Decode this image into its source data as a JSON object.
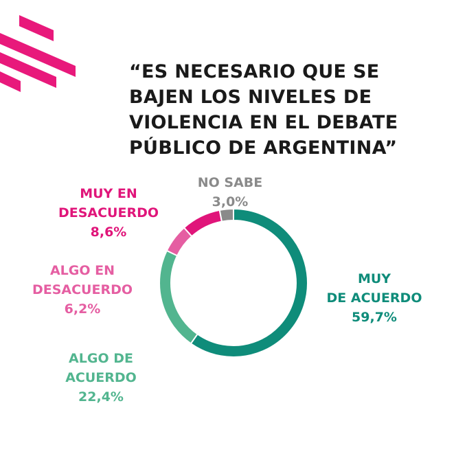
{
  "title_lines": [
    "“ES NECESARIO QUE SE",
    "BAJEN LOS NIVELES DE",
    "VIOLENCIA EN EL DEBATE",
    "PÚBLICO DE ARGENTINA”"
  ],
  "logo": {
    "icon": "brand-stripes-icon",
    "color": "#e8197b"
  },
  "chart_data": {
    "type": "pie",
    "style": "donut",
    "title": "“ES NECESARIO QUE SE BAJEN LOS NIVELES DE VIOLENCIA EN EL DEBATE PÚBLICO DE ARGENTINA”",
    "legend": "none",
    "slices": [
      {
        "label_lines": [
          "MUY",
          "DE ACUERDO"
        ],
        "value": 59.7,
        "value_label": "59,7%",
        "color": "#0f8c7a",
        "label_color": "#0f8c7a"
      },
      {
        "label_lines": [
          "ALGO DE",
          "ACUERDO"
        ],
        "value": 22.4,
        "value_label": "22,4%",
        "color": "#52b58f",
        "label_color": "#52b58f"
      },
      {
        "label_lines": [
          "ALGO EN",
          "DESACUERDO"
        ],
        "value": 6.2,
        "value_label": "6,2%",
        "color": "#e55ea2",
        "label_color": "#e55ea2"
      },
      {
        "label_lines": [
          "MUY EN",
          "DESACUERDO"
        ],
        "value": 8.6,
        "value_label": "8,6%",
        "color": "#e0157a",
        "label_color": "#e0157a"
      },
      {
        "label_lines": [
          "NO SABE"
        ],
        "value": 3.0,
        "value_label": "3,0%",
        "color": "#8a8a8a",
        "label_color": "#8a8a8a"
      }
    ]
  }
}
